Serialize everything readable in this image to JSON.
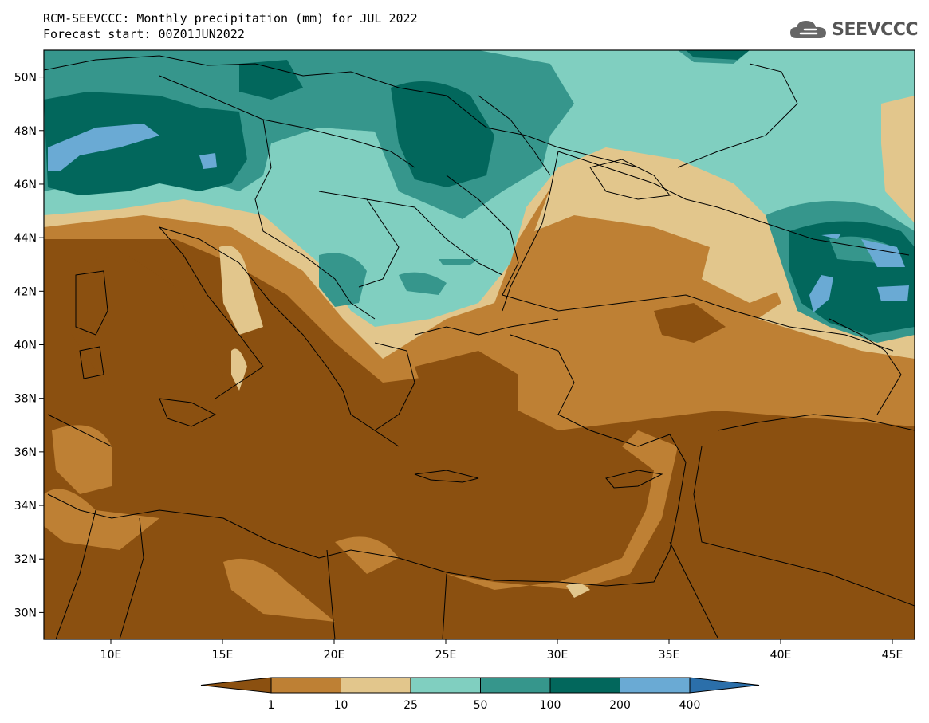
{
  "header": {
    "title": "RCM-SEEVCCC: Monthly precipitation (mm) for JUL 2022",
    "subtitle": "Forecast start: 00Z01JUN2022"
  },
  "logo": {
    "text": "SEEVCCC"
  },
  "map": {
    "lon_range": [
      7,
      46
    ],
    "lat_range": [
      29,
      51
    ],
    "x_ticks": [
      "10E",
      "15E",
      "20E",
      "25E",
      "30E",
      "35E",
      "40E",
      "45E"
    ],
    "y_ticks": [
      "30N",
      "32N",
      "34N",
      "36N",
      "38N",
      "40N",
      "42N",
      "44N",
      "46N",
      "48N",
      "50N"
    ]
  },
  "legend": {
    "units": "mm",
    "colors": [
      "#8b5010",
      "#be8034",
      "#e2c68c",
      "#80cfc0",
      "#36968c",
      "#02675c",
      "#6aaad4",
      "#2b6faa"
    ],
    "labels": [
      "1",
      "10",
      "25",
      "50",
      "100",
      "200",
      "400"
    ]
  }
}
